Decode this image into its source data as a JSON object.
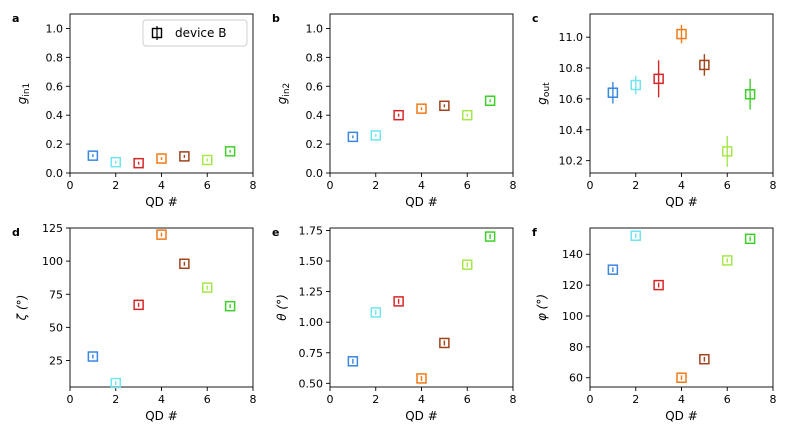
{
  "chart_data": [
    {
      "type": "scatter",
      "panel": "a",
      "xlabel": "QD #",
      "ylabel_main": "g",
      "ylabel_sub": "in1",
      "xlim": [
        0,
        8
      ],
      "ylim": [
        0,
        1.1
      ],
      "xticks": [
        "0",
        "2",
        "4",
        "6",
        "8"
      ],
      "yticks": [
        "0.0",
        "0.2",
        "0.4",
        "0.6",
        "0.8",
        "1.0"
      ],
      "ytick_values": [
        0.0,
        0.2,
        0.4,
        0.6,
        0.8,
        1.0
      ],
      "x": [
        1,
        2,
        3,
        4,
        5,
        6,
        7
      ],
      "y": [
        0.12,
        0.075,
        0.068,
        0.1,
        0.115,
        0.09,
        0.15
      ],
      "yerr": [
        0.01,
        0.01,
        0.01,
        0.01,
        0.01,
        0.01,
        0.01
      ],
      "legend": {
        "label": "device B",
        "location": "upper right"
      }
    },
    {
      "type": "scatter",
      "panel": "b",
      "xlabel": "QD #",
      "ylabel_main": "g",
      "ylabel_sub": "in2",
      "xlim": [
        0,
        8
      ],
      "ylim": [
        0,
        1.1
      ],
      "xticks": [
        "0",
        "2",
        "4",
        "6",
        "8"
      ],
      "yticks": [
        "0.0",
        "0.2",
        "0.4",
        "0.6",
        "0.8",
        "1.0"
      ],
      "ytick_values": [
        0.0,
        0.2,
        0.4,
        0.6,
        0.8,
        1.0
      ],
      "x": [
        1,
        2,
        3,
        4,
        5,
        6,
        7
      ],
      "y": [
        0.25,
        0.26,
        0.4,
        0.445,
        0.465,
        0.4,
        0.5
      ],
      "yerr": [
        0.01,
        0.01,
        0.01,
        0.01,
        0.01,
        0.01,
        0.01
      ]
    },
    {
      "type": "scatter",
      "panel": "c",
      "xlabel": "QD #",
      "ylabel_main": "g",
      "ylabel_sub": "out",
      "xlim": [
        0,
        8
      ],
      "ylim": [
        10.12,
        11.15
      ],
      "xticks": [
        "0",
        "2",
        "4",
        "6",
        "8"
      ],
      "yticks": [
        "10.2",
        "10.4",
        "10.6",
        "10.8",
        "11.0"
      ],
      "ytick_values": [
        10.2,
        10.4,
        10.6,
        10.8,
        11.0
      ],
      "x": [
        1,
        2,
        3,
        4,
        5,
        6,
        7
      ],
      "y": [
        10.64,
        10.69,
        10.73,
        11.02,
        10.82,
        10.26,
        10.63
      ],
      "yerr": [
        0.07,
        0.06,
        0.12,
        0.06,
        0.07,
        0.1,
        0.1
      ]
    },
    {
      "type": "scatter",
      "panel": "d",
      "xlabel": "QD #",
      "ylabel_main": "ζ (°)",
      "ylabel_sub": "",
      "xlim": [
        0,
        8
      ],
      "ylim": [
        5,
        125
      ],
      "xticks": [
        "0",
        "2",
        "4",
        "6",
        "8"
      ],
      "yticks": [
        "25",
        "50",
        "75",
        "100",
        "125"
      ],
      "ytick_values": [
        25,
        50,
        75,
        100,
        125
      ],
      "x": [
        1,
        2,
        3,
        4,
        5,
        6,
        7
      ],
      "y": [
        28,
        8,
        67,
        120,
        98,
        80,
        66
      ],
      "yerr": [
        1.5,
        1.5,
        1.5,
        1.5,
        1.5,
        1.5,
        1.5
      ]
    },
    {
      "type": "scatter",
      "panel": "e",
      "xlabel": "QD #",
      "ylabel_main": "θ (°)",
      "ylabel_sub": "",
      "xlim": [
        0,
        8
      ],
      "ylim": [
        0.47,
        1.77
      ],
      "xticks": [
        "0",
        "2",
        "4",
        "6",
        "8"
      ],
      "yticks": [
        "0.50",
        "0.75",
        "1.00",
        "1.25",
        "1.50",
        "1.75"
      ],
      "ytick_values": [
        0.5,
        0.75,
        1.0,
        1.25,
        1.5,
        1.75
      ],
      "x": [
        1,
        2,
        3,
        4,
        5,
        6,
        7
      ],
      "y": [
        0.68,
        1.08,
        1.17,
        0.54,
        0.83,
        1.47,
        1.7
      ],
      "yerr": [
        0.02,
        0.02,
        0.02,
        0.02,
        0.02,
        0.02,
        0.02
      ]
    },
    {
      "type": "scatter",
      "panel": "f",
      "xlabel": "QD #",
      "ylabel_main": "φ (°)",
      "ylabel_sub": "",
      "xlim": [
        0,
        8
      ],
      "ylim": [
        54,
        157
      ],
      "xticks": [
        "0",
        "2",
        "4",
        "6",
        "8"
      ],
      "yticks": [
        "60",
        "80",
        "100",
        "120",
        "140"
      ],
      "ytick_values": [
        60,
        80,
        100,
        120,
        140
      ],
      "x": [
        1,
        2,
        3,
        4,
        5,
        6,
        7
      ],
      "y": [
        130,
        152,
        120,
        60,
        72,
        136,
        150
      ],
      "yerr": [
        1.5,
        1.5,
        1.5,
        1.5,
        1.5,
        1.5,
        1.5
      ]
    }
  ],
  "colors": [
    "#3a86e0",
    "#6fe6f0",
    "#d62728",
    "#f07a1a",
    "#a0441c",
    "#a6e84c",
    "#3fcf2a"
  ],
  "markers": {
    "shape": "open-square"
  }
}
